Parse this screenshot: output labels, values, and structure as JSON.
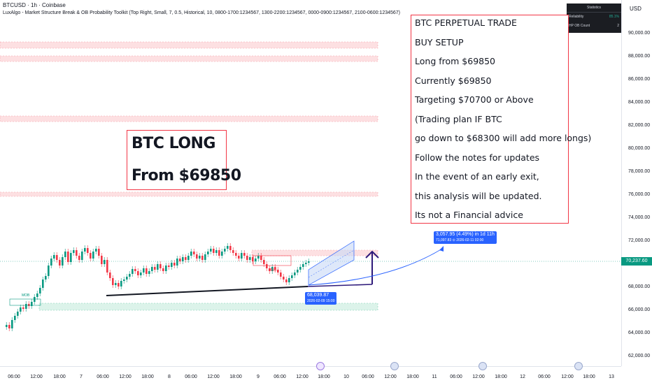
{
  "header": {
    "symbol": "BTCUSD · 1h · Coinbase",
    "indicator": "LuxAlgo - Market Structure Break & OB Probability Toolkit (Top Right, Small, 7, 0.5, Historical, 10, 0800-1700:1234567, 1300-2200:1234567, 0000-0900:1234567, 2100-0600:1234567)"
  },
  "price_axis": {
    "currency": "USD",
    "labels": [
      "90,000.00",
      "88,000.00",
      "86,000.00",
      "84,000.00",
      "82,000.00",
      "80,000.00",
      "78,000.00",
      "76,000.00",
      "74,000.00",
      "72,000.00",
      "68,000.00",
      "66,000.00",
      "64,000.00",
      "62,000.00"
    ],
    "current_price": "70,237.60",
    "current_color": "#089981"
  },
  "time_axis": {
    "labels": [
      "06:00",
      "12:00",
      "18:00",
      "7",
      "06:00",
      "12:00",
      "18:00",
      "8",
      "06:00",
      "12:00",
      "18:00",
      "9",
      "06:00",
      "12:00",
      "18:00",
      "10",
      "06:00",
      "12:00",
      "18:00",
      "11",
      "06:00",
      "12:00",
      "18:00",
      "12",
      "06:00",
      "12:00",
      "18:00",
      "13"
    ]
  },
  "statistics": {
    "title": "Statistics",
    "reliability_label": "Reliability",
    "reliability_value": "85.1%",
    "hp_label": "HP OB Count",
    "hp_value": "2"
  },
  "long_box": {
    "line1": "BTC LONG",
    "line2": "From $69850"
  },
  "trade_box": {
    "lines": [
      "BTC PERPETUAL TRADE",
      "BUY SETUP",
      "Long from $69850",
      "Currently $69850",
      "Targeting $70700 or Above",
      "(Trading plan IF BTC",
      "go down to $68300 will add more longs)",
      "Follow the notes for updates",
      "In the event of an early exit,",
      "this analysis will be updated.",
      "Its not a Financial advice"
    ]
  },
  "projection": {
    "line1": "3,057.95 (4.49%) in 1d 11h",
    "line2": "71,097.83 ⊙ 2026-02-11  02:00"
  },
  "low_tag": {
    "line1": "68,039.87",
    "line2": "2026-02-09 15:00"
  },
  "markers": {
    "mob1": "MOB",
    "mob2": "MOB"
  },
  "colors": {
    "up": "#089981",
    "down": "#f23645",
    "accent": "#2962ff",
    "arrow": "#2e1a7a"
  }
}
